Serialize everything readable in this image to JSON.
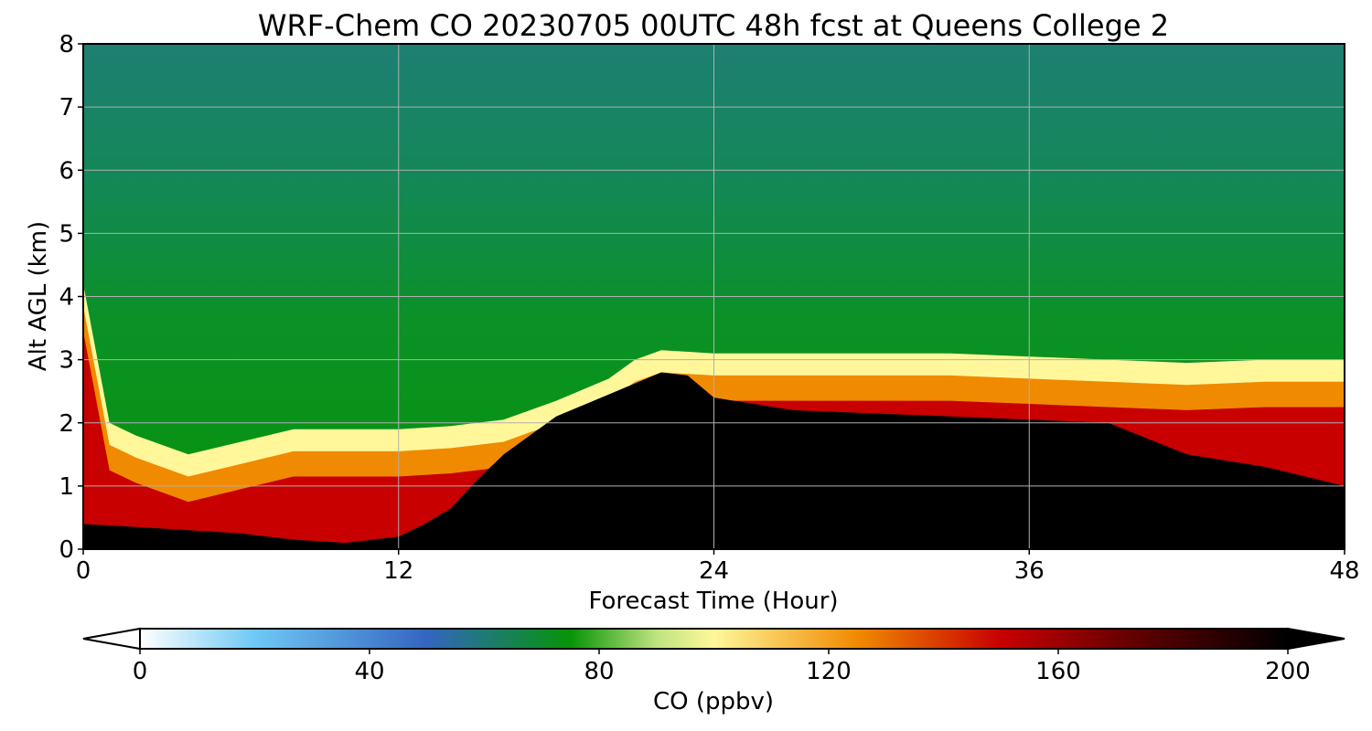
{
  "chart_data": {
    "type": "heatmap",
    "title": "WRF-Chem CO  20230705 00UTC 48h fcst at Queens College 2",
    "xlabel": "Forecast Time (Hour)",
    "ylabel": "Alt AGL (km)",
    "xlim": [
      0,
      48
    ],
    "ylim": [
      0,
      8
    ],
    "x_ticks": [
      "0",
      "12",
      "24",
      "36",
      "48"
    ],
    "y_ticks": [
      "0",
      "1",
      "2",
      "3",
      "4",
      "5",
      "6",
      "7",
      "8"
    ],
    "grid": true,
    "colorbar": {
      "label": "CO  (ppbv)",
      "range": [
        0,
        200
      ],
      "ticks": [
        "0",
        "40",
        "80",
        "120",
        "160",
        "200"
      ],
      "extend": "both",
      "colormap_stops": [
        {
          "v": 0,
          "c": "#ffffff"
        },
        {
          "v": 20,
          "c": "#6fc8f5"
        },
        {
          "v": 50,
          "c": "#3465c0"
        },
        {
          "v": 60,
          "c": "#1f7a74"
        },
        {
          "v": 75,
          "c": "#069408"
        },
        {
          "v": 90,
          "c": "#bfe37f"
        },
        {
          "v": 100,
          "c": "#fff79a"
        },
        {
          "v": 125,
          "c": "#f08a00"
        },
        {
          "v": 150,
          "c": "#c80000"
        },
        {
          "v": 175,
          "c": "#5a0000"
        },
        {
          "v": 200,
          "c": "#000000"
        }
      ]
    },
    "boundary_layer_top_km": {
      "hours": [
        0,
        1,
        2,
        4,
        6,
        8,
        10,
        12,
        14,
        16,
        18,
        20,
        21,
        22,
        24,
        27,
        30,
        33,
        36,
        39,
        42,
        45,
        48
      ],
      "values": [
        4.2,
        2.0,
        1.8,
        1.5,
        1.7,
        1.9,
        1.9,
        1.9,
        1.95,
        2.05,
        2.35,
        2.7,
        3.0,
        3.15,
        3.1,
        3.1,
        3.1,
        3.1,
        3.05,
        3.0,
        2.95,
        3.0,
        3.0
      ]
    },
    "high_co_core_top_km": {
      "hours": [
        0,
        2,
        4,
        6,
        8,
        10,
        12,
        13,
        14,
        15,
        16,
        18,
        20,
        22,
        23,
        24,
        27,
        30,
        33,
        36,
        39,
        42,
        45,
        48
      ],
      "values": [
        0.4,
        0.35,
        0.3,
        0.25,
        0.15,
        0.1,
        0.2,
        0.4,
        0.65,
        1.1,
        1.5,
        2.1,
        2.45,
        2.8,
        2.75,
        2.4,
        2.2,
        2.15,
        2.1,
        2.05,
        2.0,
        1.5,
        1.3,
        1.0
      ]
    }
  }
}
